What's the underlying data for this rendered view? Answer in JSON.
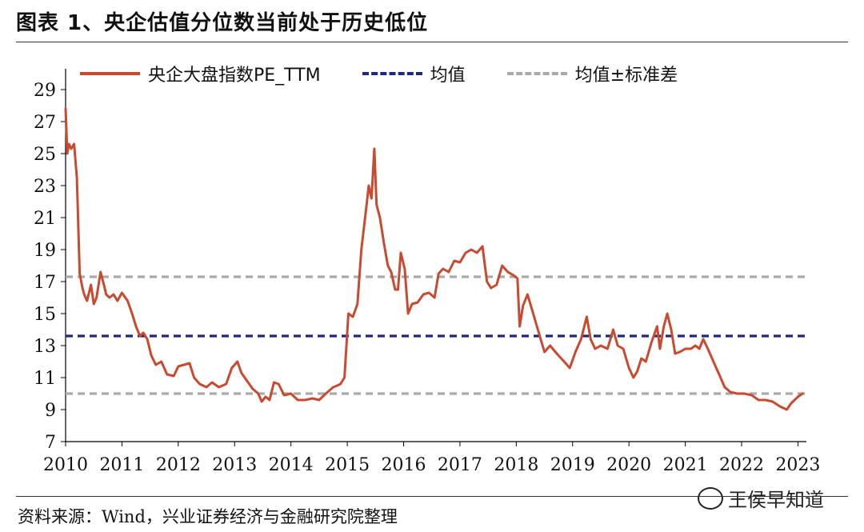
{
  "page": {
    "title": "图表 1、央企估值分位数当前处于历史低位",
    "source": "资料来源：Wind，兴业证券经济与金融研究院整理",
    "watermark": "王侯早知道"
  },
  "chart_data": {
    "type": "line",
    "title": "图表 1、央企估值分位数当前处于历史低位",
    "xlabel": "",
    "ylabel": "",
    "xlim": [
      2010,
      2023.15
    ],
    "ylim": [
      7,
      30
    ],
    "yticks": [
      7,
      9,
      11,
      13,
      15,
      17,
      19,
      21,
      23,
      25,
      27,
      29
    ],
    "xticks": [
      "2010",
      "2011",
      "2012",
      "2013",
      "2014",
      "2015",
      "2016",
      "2017",
      "2018",
      "2019",
      "2020",
      "2021",
      "2022",
      "2023"
    ],
    "grid": false,
    "legend_position": "top",
    "series": [
      {
        "name": "央企大盘指数PE_TTM",
        "color": "#c84a30",
        "style": "solid",
        "x": [
          2010.0,
          2010.03,
          2010.06,
          2010.1,
          2010.15,
          2010.2,
          2010.25,
          2010.3,
          2010.33,
          2010.38,
          2010.45,
          2010.5,
          2010.55,
          2010.62,
          2010.68,
          2010.72,
          2010.78,
          2010.85,
          2010.92,
          2011.0,
          2011.1,
          2011.18,
          2011.25,
          2011.32,
          2011.38,
          2011.45,
          2011.52,
          2011.6,
          2011.7,
          2011.8,
          2011.92,
          2012.0,
          2012.1,
          2012.2,
          2012.28,
          2012.38,
          2012.5,
          2012.6,
          2012.72,
          2012.85,
          2012.95,
          2013.05,
          2013.12,
          2013.22,
          2013.32,
          2013.42,
          2013.48,
          2013.55,
          2013.62,
          2013.7,
          2013.78,
          2013.88,
          2014.0,
          2014.12,
          2014.25,
          2014.38,
          2014.5,
          2014.62,
          2014.75,
          2014.82,
          2014.88,
          2014.95,
          2015.02,
          2015.1,
          2015.18,
          2015.25,
          2015.3,
          2015.35,
          2015.38,
          2015.43,
          2015.48,
          2015.52,
          2015.58,
          2015.65,
          2015.72,
          2015.78,
          2015.85,
          2015.9,
          2015.95,
          2016.02,
          2016.08,
          2016.15,
          2016.25,
          2016.35,
          2016.45,
          2016.55,
          2016.62,
          2016.7,
          2016.8,
          2016.9,
          2017.0,
          2017.1,
          2017.2,
          2017.3,
          2017.4,
          2017.48,
          2017.55,
          2017.65,
          2017.75,
          2017.85,
          2017.95,
          2018.02,
          2018.06,
          2018.12,
          2018.2,
          2018.3,
          2018.4,
          2018.5,
          2018.6,
          2018.72,
          2018.85,
          2018.95,
          2019.05,
          2019.15,
          2019.25,
          2019.32,
          2019.4,
          2019.5,
          2019.62,
          2019.72,
          2019.8,
          2019.9,
          2020.0,
          2020.08,
          2020.15,
          2020.22,
          2020.3,
          2020.4,
          2020.5,
          2020.55,
          2020.62,
          2020.68,
          2020.75,
          2020.82,
          2020.9,
          2021.0,
          2021.1,
          2021.18,
          2021.25,
          2021.32,
          2021.4,
          2021.5,
          2021.6,
          2021.7,
          2021.8,
          2021.92,
          2022.05,
          2022.18,
          2022.3,
          2022.42,
          2022.55,
          2022.68,
          2022.8,
          2022.88,
          2023.0,
          2023.08
        ],
        "y": [
          27.8,
          25.0,
          25.6,
          25.3,
          25.6,
          23.5,
          17.5,
          16.6,
          16.2,
          15.8,
          16.8,
          15.6,
          16.0,
          17.6,
          16.8,
          16.2,
          16.0,
          16.2,
          15.8,
          16.3,
          15.8,
          15.0,
          14.2,
          13.6,
          13.8,
          13.4,
          12.4,
          11.8,
          12.0,
          11.2,
          11.1,
          11.7,
          11.8,
          11.9,
          11.0,
          10.6,
          10.4,
          10.7,
          10.4,
          10.6,
          11.6,
          12.0,
          11.3,
          10.8,
          10.3,
          10.0,
          9.5,
          9.8,
          9.6,
          10.7,
          10.6,
          9.9,
          10.0,
          9.6,
          9.6,
          9.7,
          9.6,
          10.0,
          10.4,
          10.5,
          10.6,
          11.0,
          15.0,
          14.8,
          15.6,
          19.0,
          20.5,
          22.0,
          23.0,
          22.2,
          25.3,
          21.8,
          21.0,
          19.4,
          18.0,
          17.6,
          16.5,
          16.5,
          18.8,
          17.8,
          15.0,
          15.6,
          15.7,
          16.2,
          16.3,
          16.0,
          17.5,
          17.8,
          17.6,
          18.3,
          18.2,
          18.8,
          19.0,
          18.8,
          19.2,
          17.0,
          16.6,
          16.8,
          18.0,
          17.6,
          17.4,
          17.2,
          14.2,
          15.5,
          16.2,
          15.0,
          13.8,
          12.6,
          13.0,
          12.5,
          12.0,
          11.6,
          12.6,
          13.4,
          14.8,
          13.4,
          12.8,
          13.0,
          12.8,
          14.0,
          13.0,
          12.8,
          11.6,
          11.0,
          11.4,
          12.2,
          12.0,
          13.2,
          14.2,
          12.8,
          14.2,
          15.0,
          14.0,
          12.5,
          12.6,
          12.8,
          12.8,
          13.0,
          12.8,
          13.4,
          12.8,
          12.0,
          11.2,
          10.4,
          10.1,
          10.0,
          10.0,
          9.9,
          9.6,
          9.6,
          9.5,
          9.2,
          9.0,
          9.4,
          9.8,
          10.0
        ]
      },
      {
        "name": "均值",
        "color": "#1c2a78",
        "style": "dashed",
        "value": 13.6
      },
      {
        "name": "均值±标准差",
        "color": "#aaaaaa",
        "style": "dashed",
        "values": [
          17.3,
          10.0
        ]
      }
    ]
  }
}
